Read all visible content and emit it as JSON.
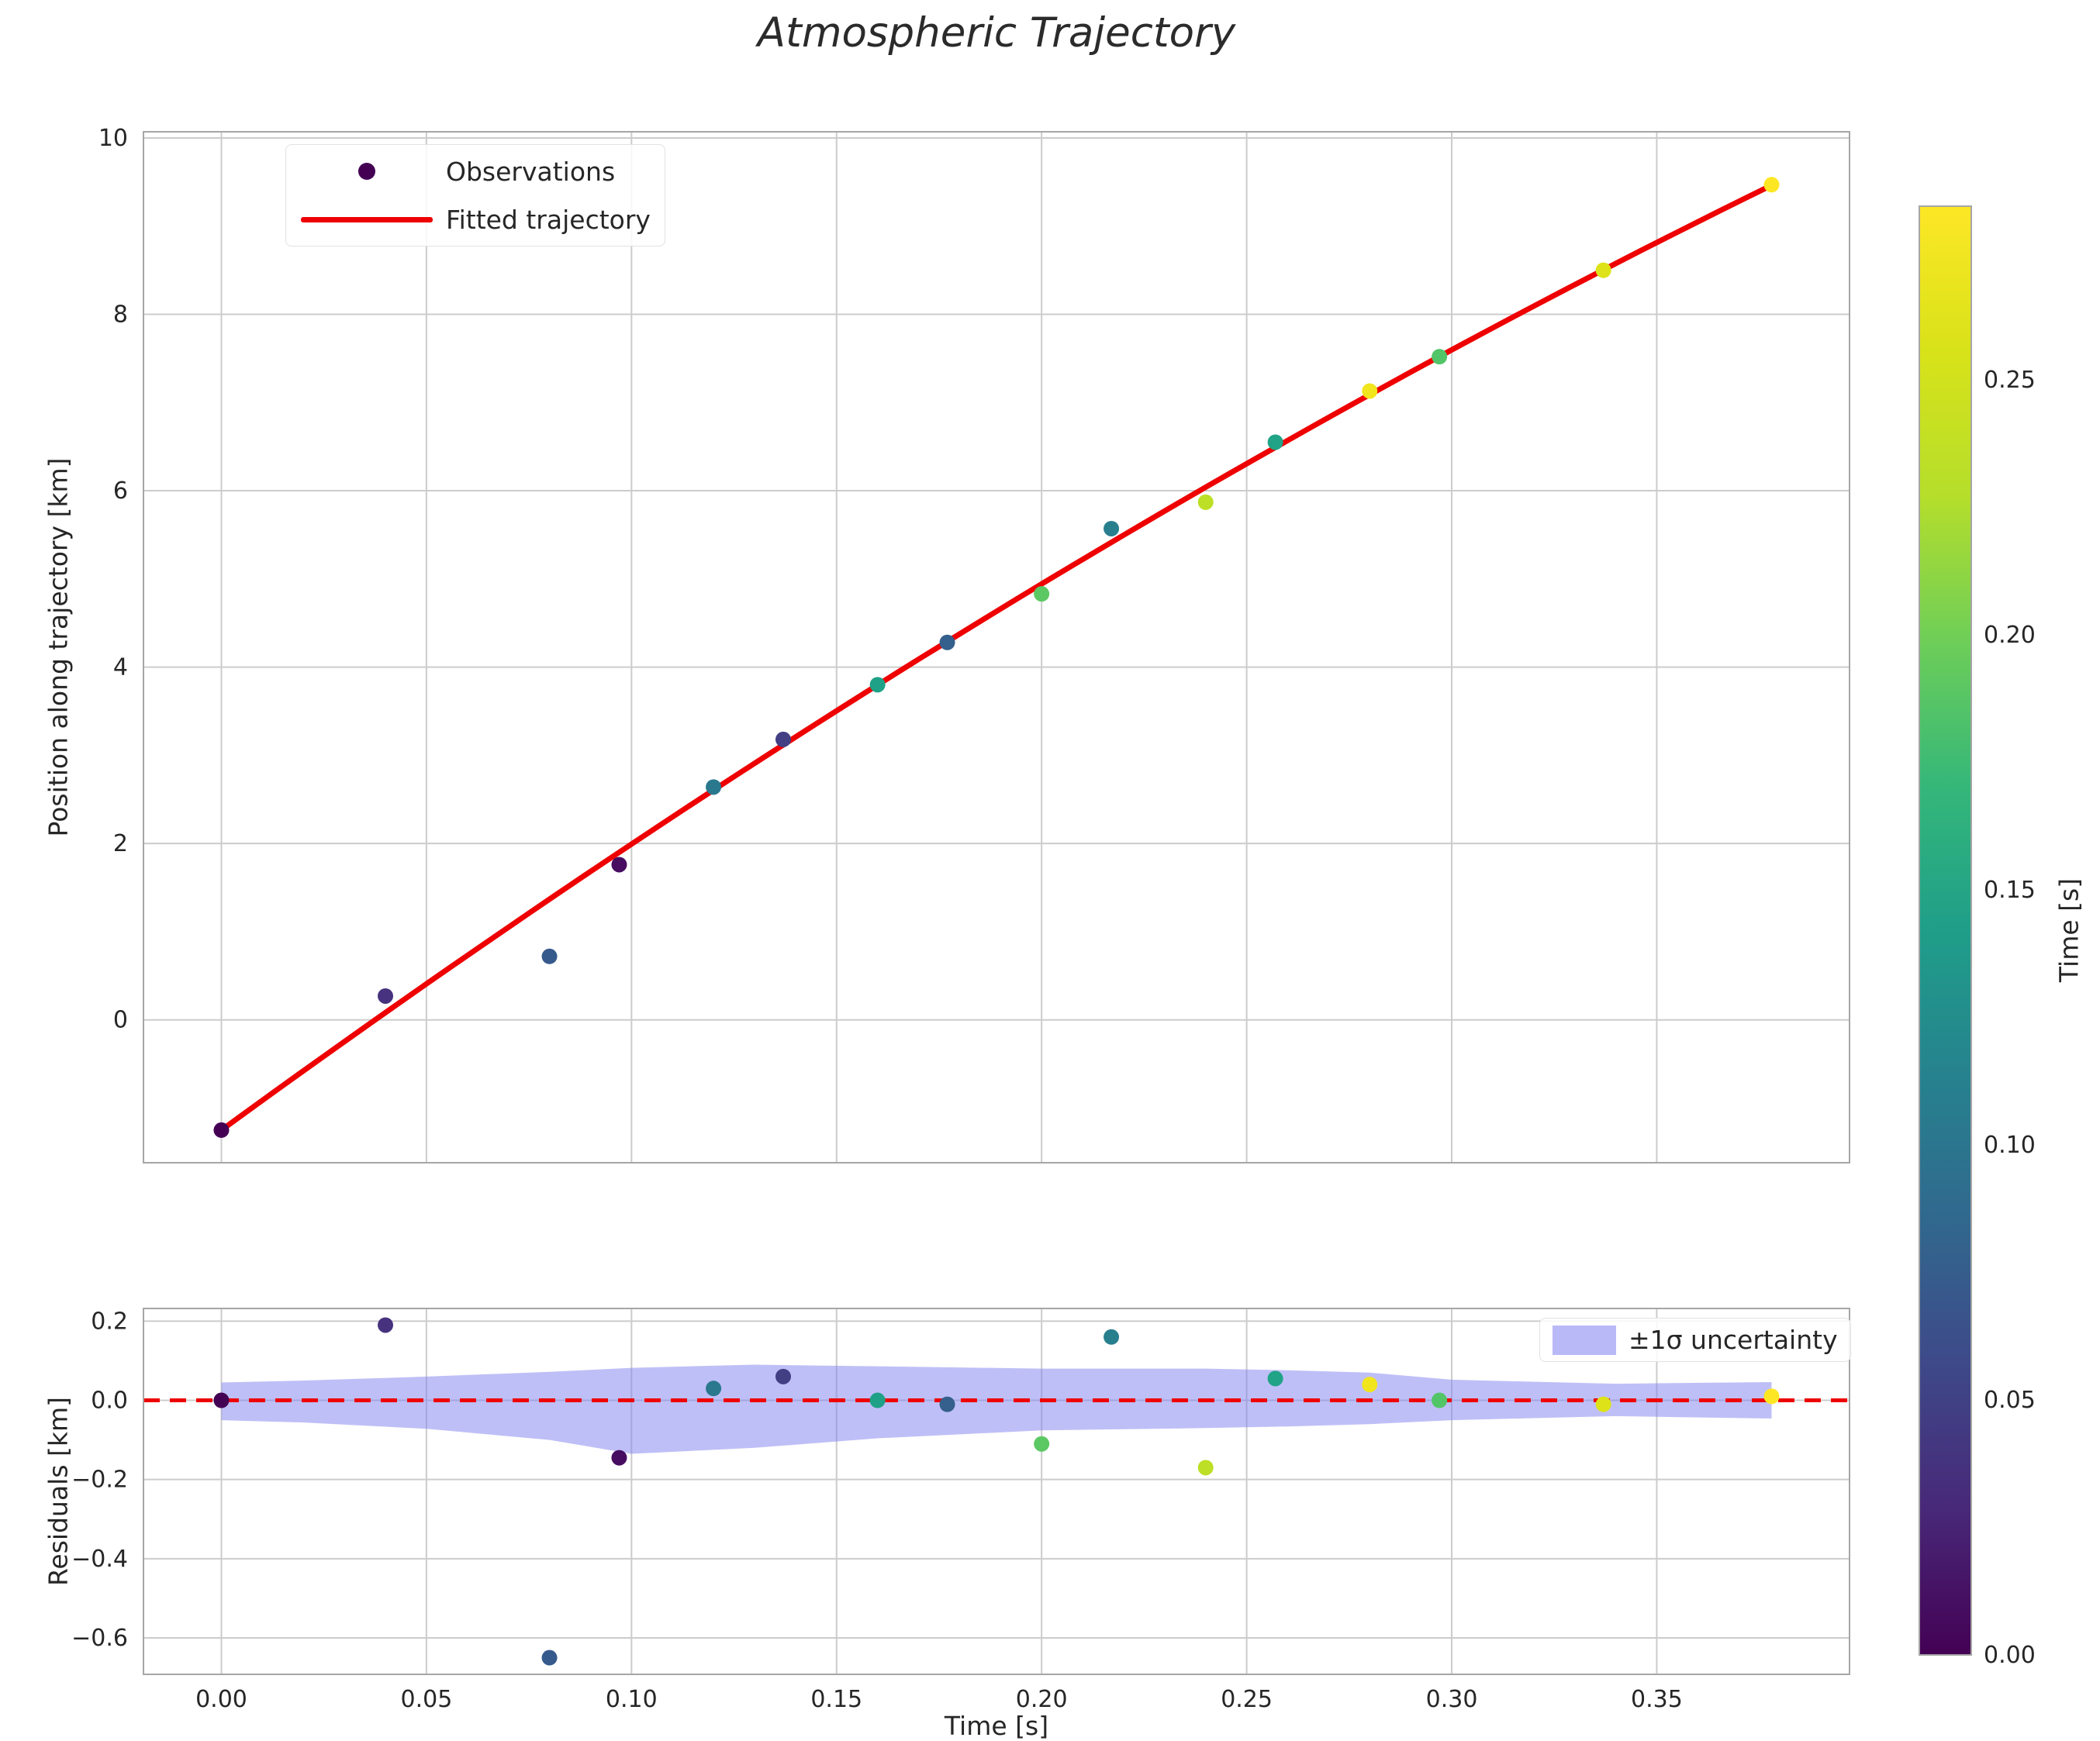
{
  "title": "Atmospheric Trajectory",
  "axes": {
    "x_label": "Time [s]",
    "main_y_label": "Position along trajectory [km]",
    "resid_y_label": "Residuals [km]"
  },
  "legend_main": {
    "observations": "Observations",
    "fitted": "Fitted trajectory"
  },
  "legend_resid": {
    "uncertainty": "±1σ uncertainty"
  },
  "colorbar": {
    "label": "Time [s]",
    "tick_values": [
      0,
      0.05,
      0.1,
      0.15,
      0.2,
      0.25
    ],
    "tick_labels": [
      "0.00",
      "0.05",
      "0.10",
      "0.15",
      "0.20",
      "0.25"
    ],
    "vmin": 0,
    "vmax": 0.284,
    "viridis": [
      "#440154",
      "#482878",
      "#3e4989",
      "#31688e",
      "#26828e",
      "#1f9e89",
      "#35b779",
      "#6ece58",
      "#b5de2b",
      "#d8e219",
      "#fde725"
    ]
  },
  "colors": {
    "fit_line": "#ee0000",
    "zero_line": "#ee0000",
    "band_fill": "#8080f0",
    "grid": "#cccccc",
    "spine": "#a6a6a6",
    "text": "#262626",
    "legend_dot": "#440154"
  },
  "chart_data": {
    "type": "scatter",
    "title": "Atmospheric Trajectory",
    "xlabel": "Time [s]",
    "ylabel_main": "Position along trajectory [km]",
    "ylabel_residual": "Residuals [km]",
    "grid": true,
    "xlim": [
      -0.019,
      0.397
    ],
    "xticks": {
      "values": [
        0,
        0.05,
        0.1,
        0.15,
        0.2,
        0.25,
        0.3,
        0.35
      ],
      "labels": [
        "0.00",
        "0.05",
        "0.10",
        "0.15",
        "0.20",
        "0.25",
        "0.30",
        "0.35"
      ]
    },
    "main": {
      "ylim": [
        -1.62,
        10.07
      ],
      "yticks": {
        "values": [
          0,
          2,
          4,
          6,
          8,
          10
        ],
        "labels": [
          "0",
          "2",
          "4",
          "6",
          "8",
          "10"
        ]
      }
    },
    "residual": {
      "ylim": [
        -0.692,
        0.232
      ],
      "yticks": {
        "values": [
          0.2,
          0.0,
          -0.2,
          -0.4,
          -0.6
        ],
        "labels": [
          "0.2",
          "0.0",
          "−0.2",
          "−0.4",
          "−0.6"
        ]
      }
    },
    "observations": [
      {
        "t": 0.0,
        "y": -1.25,
        "residual": 0.0,
        "color": "#440154"
      },
      {
        "t": 0.04,
        "y": 0.27,
        "residual": 0.19,
        "color": "#46327e"
      },
      {
        "t": 0.08,
        "y": 0.72,
        "residual": -0.65,
        "color": "#375a8c"
      },
      {
        "t": 0.097,
        "y": 1.76,
        "residual": -0.145,
        "color": "#470d60"
      },
      {
        "t": 0.12,
        "y": 2.64,
        "residual": 0.03,
        "color": "#2a788e"
      },
      {
        "t": 0.137,
        "y": 3.18,
        "residual": 0.06,
        "color": "#423f85"
      },
      {
        "t": 0.16,
        "y": 3.8,
        "residual": 0.0,
        "color": "#1fa187"
      },
      {
        "t": 0.177,
        "y": 4.28,
        "residual": -0.01,
        "color": "#35608d"
      },
      {
        "t": 0.2,
        "y": 4.83,
        "residual": -0.11,
        "color": "#5cc863"
      },
      {
        "t": 0.217,
        "y": 5.57,
        "residual": 0.16,
        "color": "#277f8e"
      },
      {
        "t": 0.24,
        "y": 5.87,
        "residual": -0.17,
        "color": "#bddf26"
      },
      {
        "t": 0.257,
        "y": 6.55,
        "residual": 0.055,
        "color": "#20a386"
      },
      {
        "t": 0.28,
        "y": 7.13,
        "residual": 0.04,
        "color": "#f1e51d"
      },
      {
        "t": 0.297,
        "y": 7.52,
        "residual": 0.0,
        "color": "#52c569"
      },
      {
        "t": 0.337,
        "y": 8.5,
        "residual": -0.01,
        "color": "#dde318"
      },
      {
        "t": 0.378,
        "y": 9.47,
        "residual": 0.01,
        "color": "#fde725"
      }
    ],
    "fit": {
      "type": "quadratic",
      "coefficients": {
        "a": -1.25,
        "b": 33.9,
        "c": -14.7
      },
      "t_min": 0,
      "t_max": 0.378
    },
    "uncertainty_band": {
      "x": [
        0.0,
        0.02,
        0.05,
        0.08,
        0.1,
        0.13,
        0.16,
        0.2,
        0.24,
        0.26,
        0.28,
        0.3,
        0.34,
        0.378
      ],
      "upper": [
        0.045,
        0.05,
        0.06,
        0.072,
        0.082,
        0.09,
        0.086,
        0.08,
        0.08,
        0.076,
        0.07,
        0.052,
        0.042,
        0.046
      ],
      "lower": [
        -0.05,
        -0.056,
        -0.072,
        -0.1,
        -0.135,
        -0.12,
        -0.096,
        -0.076,
        -0.07,
        -0.066,
        -0.06,
        -0.05,
        -0.04,
        -0.046
      ]
    }
  }
}
